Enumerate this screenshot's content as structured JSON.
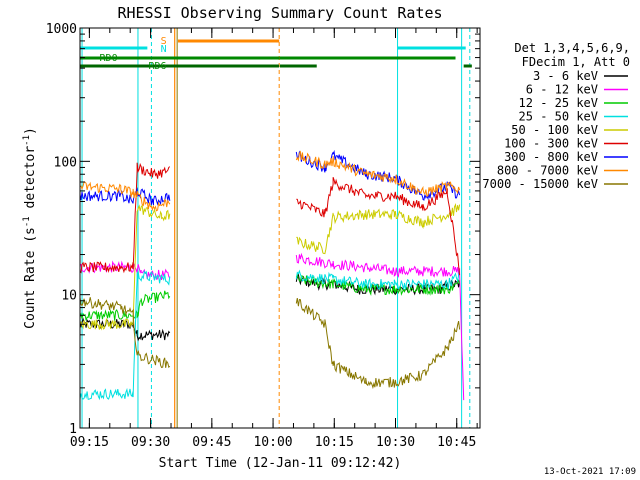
{
  "chart_data": {
    "type": "line",
    "title": "RHESSI Observing Summary Count Rates",
    "xlabel": "Start Time (12-Jan-11 09:12:42)",
    "ylabel": "Count Rate (s⁻¹ detector⁻¹)",
    "ylabel_main": "Count Rate (s",
    "ylabel_sup1": "-1",
    "ylabel_mid": " detector",
    "ylabel_sup2": "-1",
    "ylabel_end": ")",
    "yscale": "log",
    "ylim": [
      1,
      1000
    ],
    "xlim_minutes": [
      0,
      98
    ],
    "x_ticks": [
      {
        "label": "09:15",
        "minute": 2.3
      },
      {
        "label": "09:30",
        "minute": 17.3
      },
      {
        "label": "09:45",
        "minute": 32.3
      },
      {
        "label": "10:00",
        "minute": 47.3
      },
      {
        "label": "10:15",
        "minute": 62.3
      },
      {
        "label": "10:30",
        "minute": 77.3
      },
      {
        "label": "10:45",
        "minute": 92.3
      }
    ],
    "y_ticks": [
      {
        "label": "1",
        "value": 1
      },
      {
        "label": "10",
        "value": 10
      },
      {
        "label": "100",
        "value": 100
      },
      {
        "label": "1000",
        "value": 1000
      }
    ],
    "legend": {
      "placement": "top-right",
      "header1": "Det 1,3,4,5,6,9,",
      "header2": "FDecim 1, Att 0"
    },
    "flag_labels": {
      "S": "S",
      "N": "N",
      "RD0": "RD0",
      "RD6": "RD6"
    },
    "date_stamp": "13-Oct-2021 17:09",
    "series": [
      {
        "name": "3 - 6 keV",
        "color": "#000000",
        "points": [
          [
            0,
            6
          ],
          [
            13,
            6
          ],
          [
            14,
            5
          ],
          [
            16,
            5
          ],
          [
            22,
            5
          ],
          [
            52,
            null
          ],
          [
            53,
            13
          ],
          [
            59,
            12
          ],
          [
            62,
            12
          ],
          [
            68,
            11
          ],
          [
            77,
            11
          ],
          [
            88,
            11
          ],
          [
            92,
            12
          ],
          [
            93,
            12
          ]
        ]
      },
      {
        "name": "6 - 12 keV",
        "color": "#ff00ff",
        "points": [
          [
            0,
            16
          ],
          [
            14,
            16
          ],
          [
            15,
            14
          ],
          [
            22,
            14
          ],
          [
            52,
            null
          ],
          [
            53,
            19
          ],
          [
            62,
            17
          ],
          [
            70,
            16
          ],
          [
            77,
            15
          ],
          [
            93,
            15
          ],
          [
            94,
            1.5
          ]
        ]
      },
      {
        "name": "12 - 25 keV",
        "color": "#00cc00",
        "points": [
          [
            0,
            7
          ],
          [
            14,
            7
          ],
          [
            15,
            9
          ],
          [
            22,
            10
          ],
          [
            52,
            null
          ],
          [
            53,
            13
          ],
          [
            62,
            12
          ],
          [
            70,
            11
          ],
          [
            77,
            11
          ],
          [
            90,
            11
          ],
          [
            93,
            12
          ]
        ]
      },
      {
        "name": "25 - 50 keV",
        "color": "#00e0e0",
        "points": [
          [
            0,
            1.8
          ],
          [
            13,
            1.8
          ],
          [
            14,
            14
          ],
          [
            22,
            13
          ],
          [
            52,
            null
          ],
          [
            53,
            14
          ],
          [
            62,
            13
          ],
          [
            70,
            12
          ],
          [
            77,
            12
          ],
          [
            90,
            12
          ],
          [
            93,
            14
          ]
        ]
      },
      {
        "name": "50 - 100 keV",
        "color": "#cccc00",
        "points": [
          [
            0,
            6
          ],
          [
            13,
            6
          ],
          [
            14,
            45
          ],
          [
            20,
            38
          ],
          [
            22,
            40
          ],
          [
            52,
            null
          ],
          [
            53,
            25
          ],
          [
            60,
            22
          ],
          [
            62,
            38
          ],
          [
            70,
            40
          ],
          [
            77,
            40
          ],
          [
            84,
            35
          ],
          [
            90,
            40
          ],
          [
            93,
            45
          ]
        ]
      },
      {
        "name": "100 - 300 keV",
        "color": "#dd0000",
        "points": [
          [
            0,
            16
          ],
          [
            13,
            16
          ],
          [
            14,
            90
          ],
          [
            18,
            80
          ],
          [
            22,
            85
          ],
          [
            52,
            null
          ],
          [
            53,
            50
          ],
          [
            60,
            40
          ],
          [
            62,
            70
          ],
          [
            70,
            55
          ],
          [
            77,
            55
          ],
          [
            84,
            45
          ],
          [
            90,
            60
          ],
          [
            93,
            15
          ]
        ]
      },
      {
        "name": "300 - 800 keV",
        "color": "#0000ff",
        "points": [
          [
            0,
            55
          ],
          [
            10,
            55
          ],
          [
            13,
            50
          ],
          [
            14,
            60
          ],
          [
            18,
            50
          ],
          [
            22,
            55
          ],
          [
            52,
            null
          ],
          [
            53,
            110
          ],
          [
            60,
            90
          ],
          [
            62,
            110
          ],
          [
            70,
            80
          ],
          [
            77,
            75
          ],
          [
            84,
            55
          ],
          [
            90,
            65
          ],
          [
            93,
            55
          ]
        ]
      },
      {
        "name": "800 - 7000 keV",
        "color": "#ff8800",
        "points": [
          [
            0,
            65
          ],
          [
            10,
            62
          ],
          [
            13,
            58
          ],
          [
            14,
            55
          ],
          [
            18,
            45
          ],
          [
            22,
            50
          ],
          [
            52,
            null
          ],
          [
            53,
            110
          ],
          [
            60,
            95
          ],
          [
            62,
            100
          ],
          [
            70,
            80
          ],
          [
            77,
            75
          ],
          [
            84,
            58
          ],
          [
            90,
            65
          ],
          [
            93,
            62
          ]
        ]
      },
      {
        "name": "7000 - 15000 keV",
        "color": "#887700",
        "points": [
          [
            0,
            9
          ],
          [
            10,
            8
          ],
          [
            13,
            7
          ],
          [
            14,
            3.5
          ],
          [
            22,
            3
          ],
          [
            52,
            null
          ],
          [
            53,
            9
          ],
          [
            60,
            6
          ],
          [
            62,
            3
          ],
          [
            70,
            2.2
          ],
          [
            77,
            2.2
          ],
          [
            84,
            2.5
          ],
          [
            90,
            4
          ],
          [
            93,
            6
          ]
        ]
      }
    ]
  }
}
